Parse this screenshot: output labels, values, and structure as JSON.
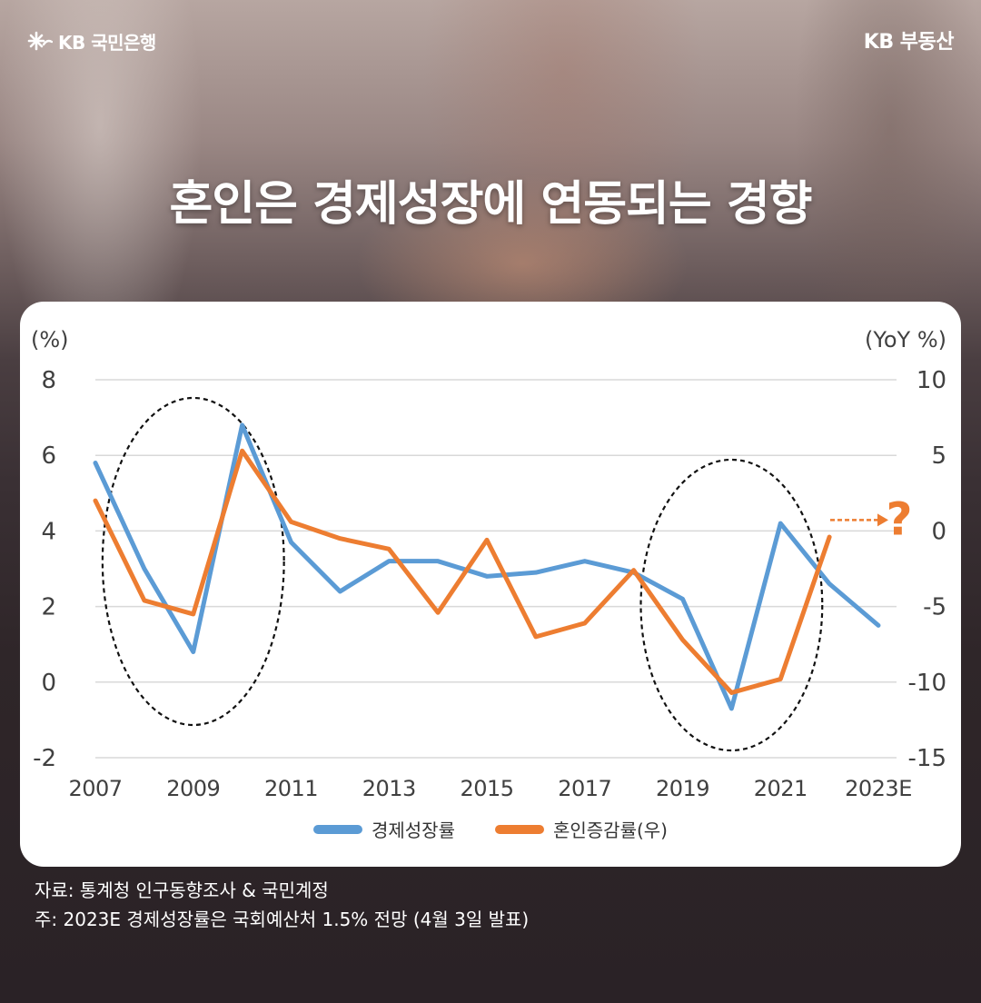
{
  "brand": {
    "left": "KB 국민은행",
    "right": "KB 부동산"
  },
  "headline": "혼인은 경제성장에 연동되는 경향",
  "notes": {
    "source": "자료: 통계청 인구동향조사 & 국민계정",
    "footnote": "주: 2023E 경제성장률은 국회예산처 1.5% 전망 (4월 3일 발표)"
  },
  "colors": {
    "gdp": "#5b9bd5",
    "marriage": "#ed7d31",
    "question": "#ed7d31"
  },
  "chart_data": {
    "type": "line",
    "x": [
      2007,
      2008,
      2009,
      2010,
      2011,
      2012,
      2013,
      2014,
      2015,
      2016,
      2017,
      2018,
      2019,
      2020,
      2021,
      2022,
      2023
    ],
    "x_tick_labels": [
      "2007",
      "2009",
      "2011",
      "2013",
      "2015",
      "2017",
      "2019",
      "2021",
      "2023E"
    ],
    "left_axis": {
      "label": "(%)",
      "range": [
        -2,
        8
      ],
      "ticks": [
        "8",
        "6",
        "4",
        "2",
        "0",
        "-2"
      ]
    },
    "right_axis": {
      "label": "(YoY %)",
      "range": [
        -15,
        10
      ],
      "ticks": [
        "10",
        "5",
        "0",
        "-5",
        "-10",
        "-15"
      ]
    },
    "series": [
      {
        "name": "경제성장률",
        "axis": "left",
        "values": [
          5.8,
          3.0,
          0.8,
          6.8,
          3.7,
          2.4,
          3.2,
          3.2,
          2.8,
          2.9,
          3.2,
          2.9,
          2.2,
          -0.7,
          4.2,
          2.6,
          1.5
        ]
      },
      {
        "name": "혼인증감률(우)",
        "axis": "right",
        "values": [
          2.0,
          -4.6,
          -5.5,
          5.3,
          0.6,
          -0.5,
          -1.2,
          -5.4,
          -0.6,
          -7.0,
          -6.1,
          -2.6,
          -7.2,
          -10.7,
          -9.8,
          -0.4,
          null
        ]
      }
    ],
    "highlight_periods": [
      [
        2008,
        2010
      ],
      [
        2019,
        2021
      ]
    ],
    "annotation": "?",
    "grid": "horizontal"
  }
}
